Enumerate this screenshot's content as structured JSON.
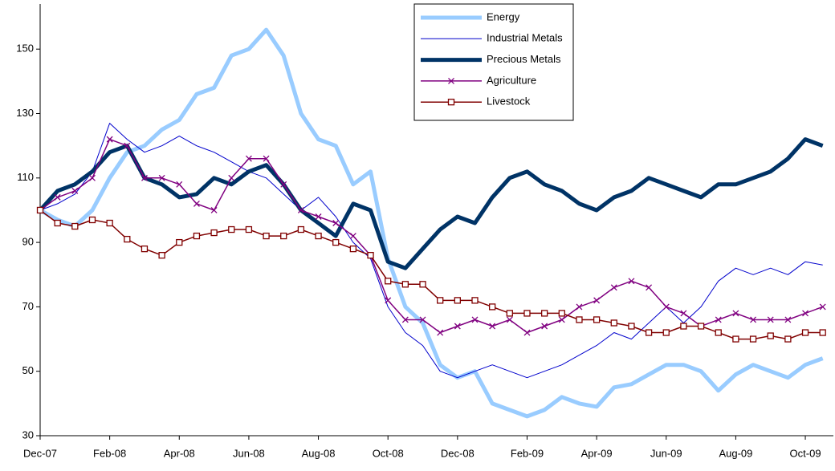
{
  "chart_data": {
    "type": "line",
    "categories": [
      "Dec-07",
      null,
      null,
      null,
      "Feb-08",
      null,
      null,
      null,
      "Apr-08",
      null,
      null,
      null,
      "Jun-08",
      null,
      null,
      null,
      "Aug-08",
      null,
      null,
      null,
      "Oct-08",
      null,
      null,
      null,
      "Dec-08",
      null,
      null,
      null,
      "Feb-09",
      null,
      null,
      null,
      "Apr-09",
      null,
      null,
      null,
      "Jun-09",
      null,
      null,
      null,
      "Aug-09",
      null,
      null,
      null,
      "Oct-09",
      null
    ],
    "series": [
      {
        "name": "Energy",
        "color": "#99ccff",
        "width": 5,
        "marker": "none",
        "values": [
          100,
          97,
          95,
          100,
          110,
          118,
          120,
          125,
          128,
          136,
          138,
          148,
          150,
          156,
          148,
          130,
          122,
          120,
          108,
          112,
          85,
          70,
          65,
          52,
          48,
          50,
          40,
          38,
          36,
          38,
          42,
          40,
          39,
          45,
          46,
          49,
          52,
          52,
          50,
          44,
          49,
          52,
          50,
          48,
          52,
          54
        ]
      },
      {
        "name": "Industrial Metals",
        "color": "#0000cc",
        "width": 1,
        "marker": "none",
        "values": [
          100,
          102,
          105,
          112,
          127,
          122,
          118,
          120,
          123,
          120,
          118,
          115,
          112,
          110,
          105,
          100,
          104,
          98,
          90,
          85,
          70,
          62,
          58,
          50,
          48,
          50,
          52,
          50,
          48,
          50,
          52,
          55,
          58,
          62,
          60,
          65,
          70,
          65,
          70,
          78,
          82,
          80,
          82,
          80,
          84,
          83
        ]
      },
      {
        "name": "Precious Metals",
        "color": "#003366",
        "width": 5,
        "marker": "none",
        "values": [
          100,
          106,
          108,
          112,
          118,
          120,
          110,
          108,
          104,
          105,
          110,
          108,
          112,
          114,
          108,
          100,
          96,
          92,
          102,
          100,
          84,
          82,
          88,
          94,
          98,
          96,
          104,
          110,
          112,
          108,
          106,
          102,
          100,
          104,
          106,
          110,
          108,
          106,
          104,
          108,
          108,
          110,
          112,
          116,
          122,
          120
        ]
      },
      {
        "name": "Agriculture",
        "color": "#800080",
        "width": 1.5,
        "marker": "x",
        "values": [
          100,
          104,
          106,
          110,
          122,
          120,
          110,
          110,
          108,
          102,
          100,
          110,
          116,
          116,
          108,
          100,
          98,
          96,
          92,
          86,
          72,
          66,
          66,
          62,
          64,
          66,
          64,
          66,
          62,
          64,
          66,
          70,
          72,
          76,
          78,
          76,
          70,
          68,
          64,
          66,
          68,
          66,
          66,
          66,
          68,
          70
        ]
      },
      {
        "name": "Livestock",
        "color": "#800000",
        "width": 1.5,
        "marker": "square",
        "values": [
          100,
          96,
          95,
          97,
          96,
          91,
          88,
          86,
          90,
          92,
          93,
          94,
          94,
          92,
          92,
          94,
          92,
          90,
          88,
          86,
          78,
          77,
          77,
          72,
          72,
          72,
          70,
          68,
          68,
          68,
          68,
          66,
          66,
          65,
          64,
          62,
          62,
          64,
          64,
          62,
          60,
          60,
          61,
          60,
          62,
          62
        ]
      }
    ],
    "ylim": [
      30,
      164
    ],
    "yticks": [
      30,
      50,
      70,
      90,
      110,
      130,
      150
    ],
    "grid": false,
    "legend": "top"
  }
}
